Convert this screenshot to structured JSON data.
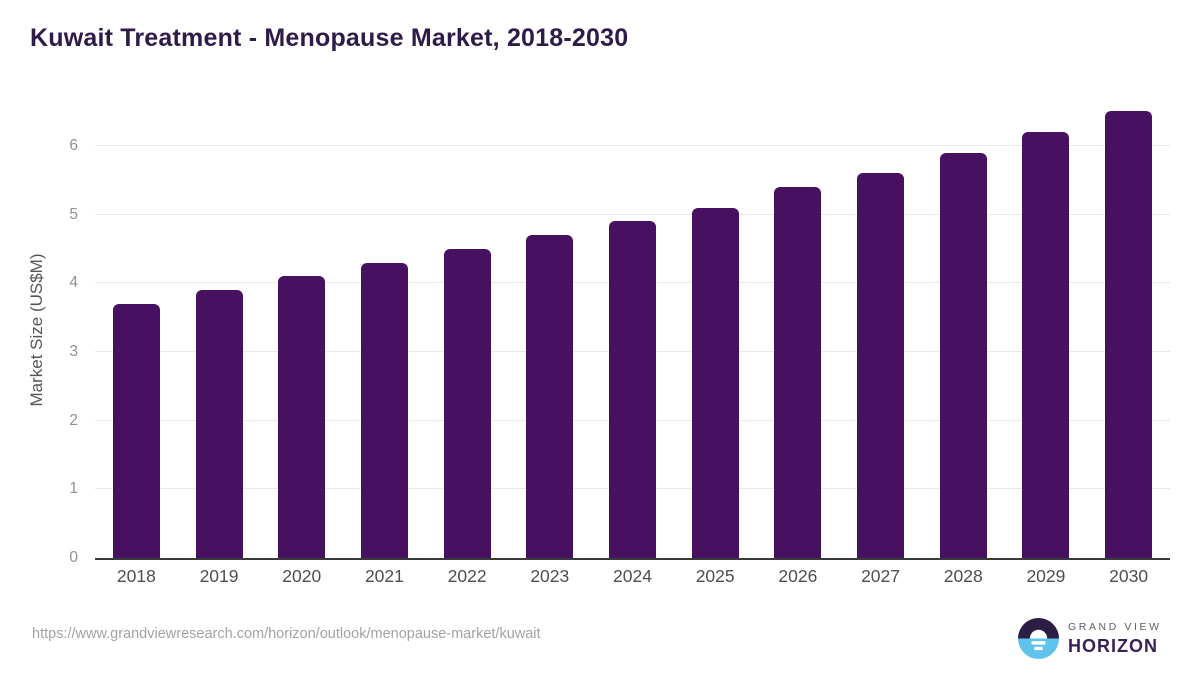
{
  "header": {
    "title": "Kuwait Treatment - Menopause Market, 2018-2030"
  },
  "chart_data": {
    "type": "bar",
    "title": "Kuwait Treatment - Menopause Market, 2018-2030",
    "categories": [
      "2018",
      "2019",
      "2020",
      "2021",
      "2022",
      "2023",
      "2024",
      "2025",
      "2026",
      "2027",
      "2028",
      "2029",
      "2030"
    ],
    "values": [
      3.7,
      3.9,
      4.1,
      4.3,
      4.5,
      4.7,
      4.9,
      5.1,
      5.4,
      5.6,
      5.9,
      6.2,
      6.5
    ],
    "xlabel": "",
    "ylabel": "Market Size (US$M)",
    "ylim": [
      0,
      6.8
    ],
    "yticks": [
      0,
      1,
      2,
      3,
      4,
      5,
      6
    ],
    "grid": "horizontal",
    "legend": "none",
    "bar_color": "#471061"
  },
  "colors": {
    "title": "#2f1b49",
    "bar": "#471061",
    "logo_dark": "#2c1d43",
    "logo_blue": "#5fc3eb"
  },
  "footer": {
    "source_url": "https://www.grandviewresearch.com/horizon/outlook/menopause-market/kuwait",
    "logo": {
      "top_text": "GRAND VIEW",
      "bottom_text": "HORIZON"
    }
  }
}
